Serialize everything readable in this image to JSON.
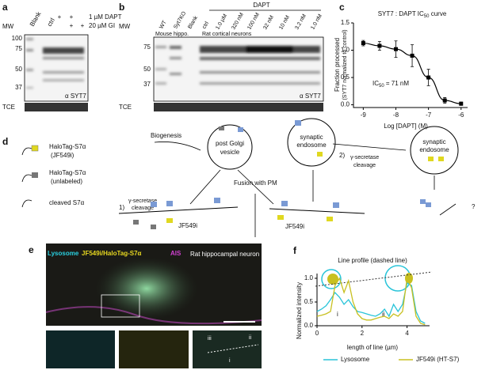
{
  "panel_a": {
    "label": "a",
    "mw": "MW",
    "lanes": [
      "Blank",
      "ctrl"
    ],
    "plus": [
      "+",
      "+",
      "+",
      "+"
    ],
    "treatments": [
      "1 µM DAPT",
      "20 µM GI"
    ],
    "markers": [
      "100",
      "75",
      "50",
      "37"
    ],
    "antibody": "α SYT7",
    "loading": "TCE"
  },
  "panel_b": {
    "label": "b",
    "mw": "MW",
    "lanes": [
      "WT",
      "Syt7KO",
      "Blank",
      "ctrl",
      "1.0 µM",
      "320 nM",
      "100 nM",
      "32 nM",
      "10 nM",
      "3.2 nM",
      "1.0 nM"
    ],
    "drug": "DAPT",
    "groups": [
      "Mouse hippo.",
      "Rat cortical neurons"
    ],
    "markers": [
      "75",
      "50",
      "37"
    ],
    "antibody": "α SYT7",
    "loading": "TCE"
  },
  "panel_c": {
    "type": "scatter",
    "label": "c",
    "title": "SYT7 : DAPT IC",
    "title_sub": "50",
    "title_end": " curve",
    "ylabel": "Fraction processed",
    "ylabel2": "(SYT7 normalized to control)",
    "xlabel": "Log [DAPT] (M)",
    "annotation": "IC",
    "annotation_sub": "50",
    "annotation_end": " = 71 nM",
    "x": [
      -9,
      -8.5,
      -8,
      -7.5,
      -7,
      -6.5,
      -6
    ],
    "values": [
      1.13,
      1.08,
      1.02,
      0.9,
      0.5,
      0.08,
      0.02
    ],
    "errors": [
      0.05,
      0.08,
      0.15,
      0.2,
      0.15,
      0.05,
      0.03
    ],
    "xlim": [
      -9.3,
      -5.8
    ],
    "ylim": [
      -0.05,
      1.5
    ],
    "xticks": [
      -9,
      -8,
      -7,
      -6
    ],
    "yticks": [
      {
        "value": 0,
        "label": "0.0"
      },
      {
        "value": 0.5,
        "label": "0.5"
      },
      {
        "value": 1,
        "label": "1.0"
      },
      {
        "value": 1.5,
        "label": "1.5"
      }
    ],
    "color": "#000000"
  },
  "panel_d": {
    "label": "d",
    "legend": [
      [
        "HaloTag-S7α",
        "(JF549i)"
      ],
      [
        "HaloTag-S7α",
        "(unlabeled)"
      ],
      [
        "cleaved S7α"
      ]
    ],
    "biogenesis": "Biogenesis",
    "vesicle": [
      "post Golgi",
      "vesicle"
    ],
    "fusion": "Fusion with PM",
    "endosome": [
      "synaptic",
      "endosome"
    ],
    "step1": "1)",
    "step2": "2)",
    "cleavage": [
      "γ-secretase",
      "cleavage"
    ],
    "dye": "JF549i",
    "question": "?"
  },
  "panel_e": {
    "label": "e",
    "channels": [
      "Lysosome",
      "JF549i/HaloTag-S7α",
      "AIS"
    ],
    "sample": "Rat hippocampal neuron",
    "rois": [
      "iii",
      "ii",
      "i"
    ]
  },
  "panel_f": {
    "type": "line",
    "label": "f",
    "title": "Line profile (dashed line)",
    "ylabel": "Normalized intensity",
    "xlabel": "length of line (µm)",
    "rois": [
      "i",
      "ii"
    ],
    "x": [
      0,
      0.2,
      0.4,
      0.6,
      0.8,
      1,
      1.2,
      1.4,
      1.6,
      1.8,
      2,
      2.2,
      2.4,
      2.6,
      2.8,
      3,
      3.2,
      3.4,
      3.6,
      3.8,
      4,
      4.2,
      4.4,
      4.6,
      4.8
    ],
    "series": [
      {
        "name": "Lysosome",
        "color": "#29c4d9",
        "values": [
          0.3,
          0.35,
          0.42,
          0.55,
          0.7,
          0.6,
          0.45,
          0.55,
          0.4,
          0.3,
          0.28,
          0.25,
          0.22,
          0.2,
          0.25,
          0.35,
          0.2,
          0.45,
          0.3,
          0.45,
          0.9,
          0.85,
          0.3,
          0.1,
          0.05
        ]
      },
      {
        "name": "JF549i (HT-S7)",
        "color": "#c8c020",
        "values": [
          0.2,
          0.22,
          0.25,
          0.3,
          0.85,
          1.0,
          0.7,
          0.95,
          0.5,
          0.25,
          0.15,
          0.12,
          0.12,
          0.15,
          0.18,
          0.2,
          0.15,
          0.25,
          0.2,
          0.3,
          1.0,
          0.8,
          0.2,
          0.05,
          0.02
        ]
      }
    ],
    "xlim": [
      0,
      5
    ],
    "ylim": [
      0,
      1.1
    ],
    "xticks": [
      0,
      2,
      4
    ],
    "yticks": [
      {
        "value": 0,
        "label": "0.0"
      },
      {
        "value": 0.5,
        "label": "0.5"
      },
      {
        "value": 1,
        "label": "1.0"
      }
    ]
  }
}
